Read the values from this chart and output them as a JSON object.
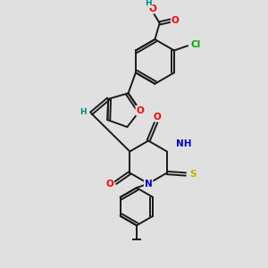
{
  "bg_color": "#e0e0e0",
  "bond_color": "#1a1a1a",
  "bond_width": 1.4,
  "dbo": 0.055,
  "atom_colors": {
    "O": "#ff0000",
    "N": "#0000cc",
    "S": "#b8b800",
    "Cl": "#00aa00",
    "H": "#008888",
    "C": "#1a1a1a"
  },
  "font_size": 7.5
}
